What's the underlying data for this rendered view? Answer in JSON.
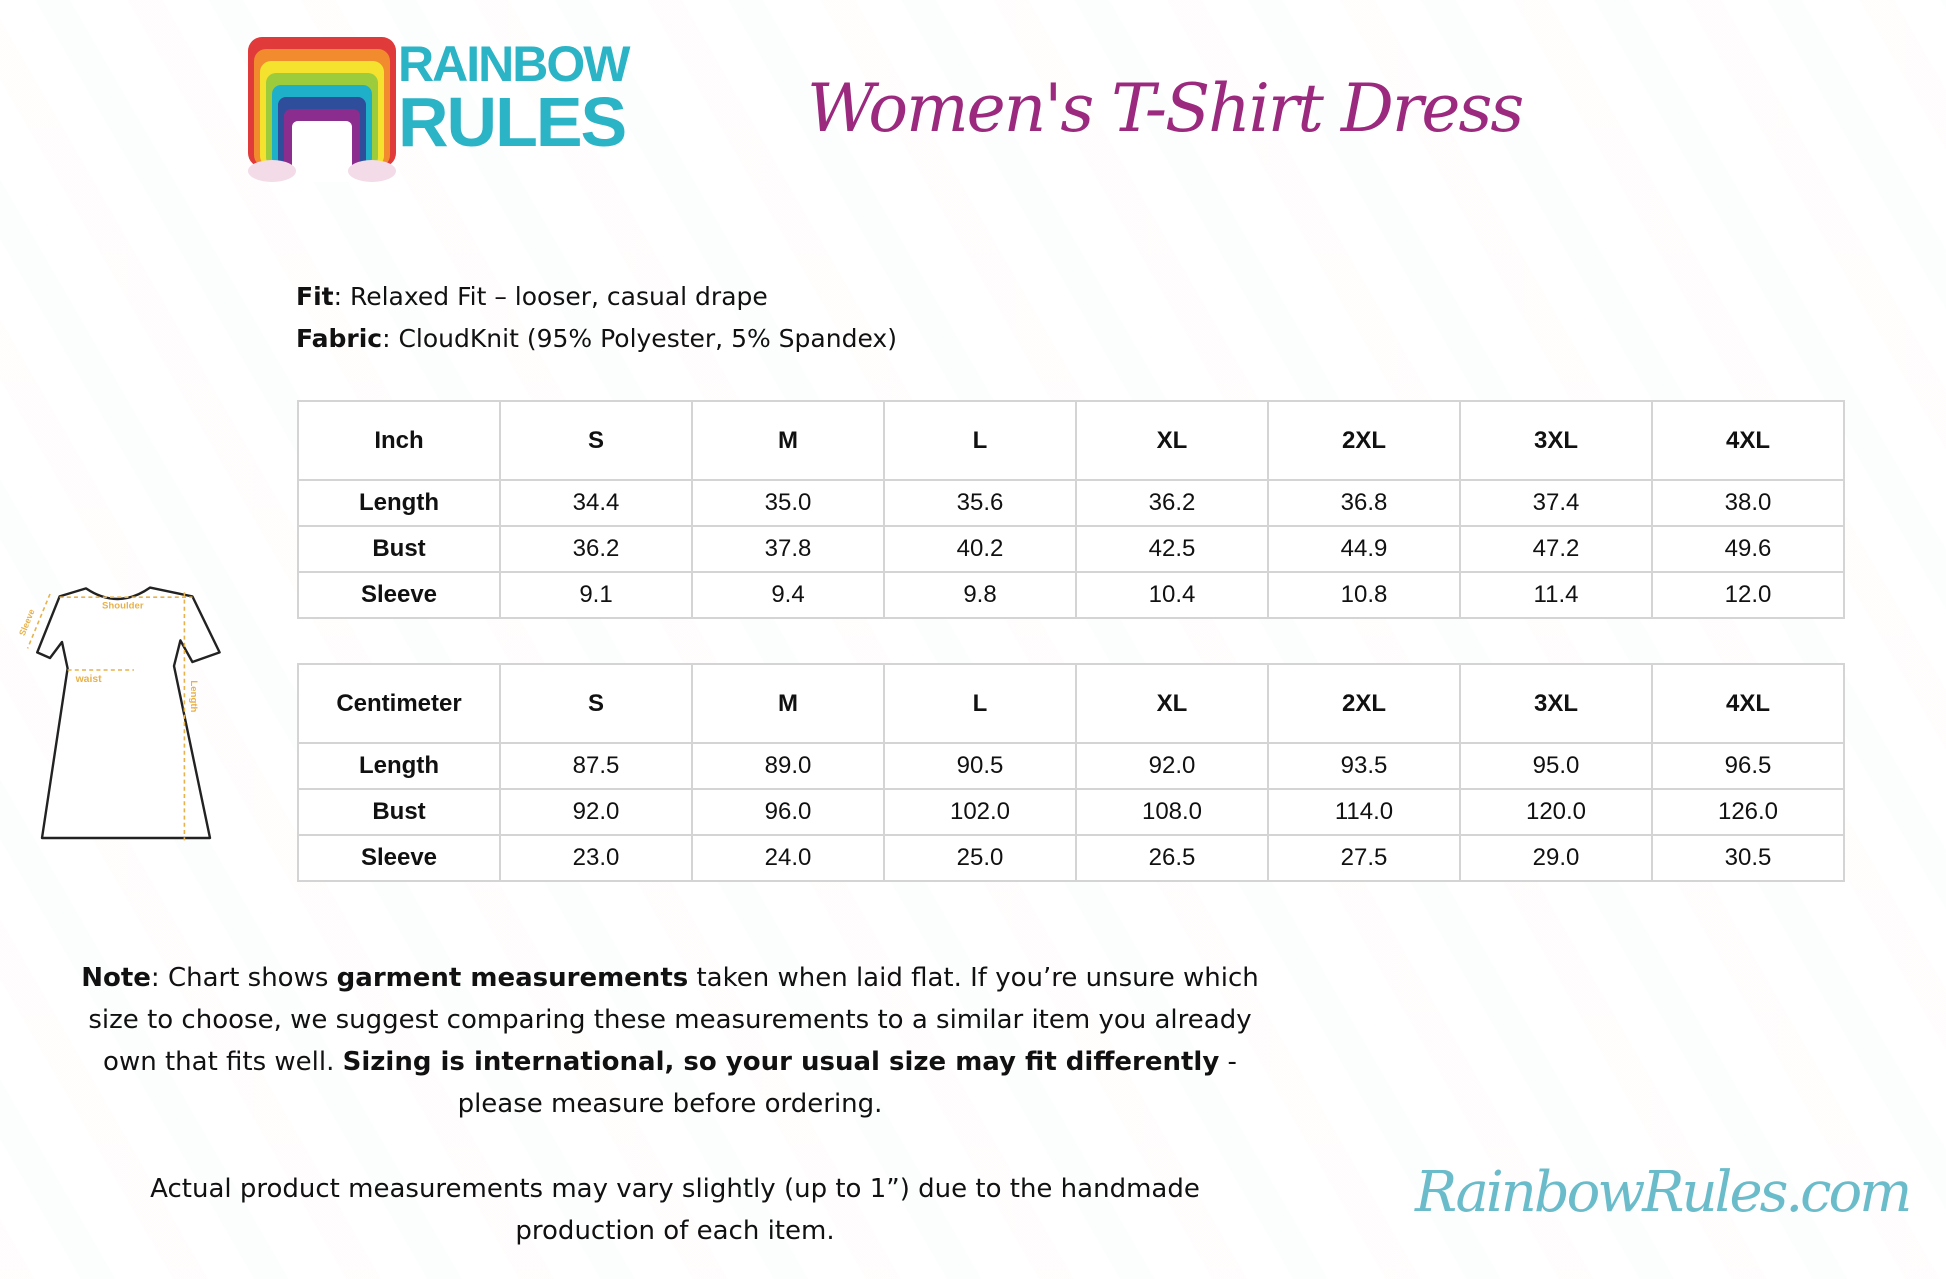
{
  "brand": {
    "logo_text_line1": "RAINBOW",
    "logo_text_line2": "RULES",
    "website": "RainbowRules.com",
    "teal": "#2bb3c6",
    "purple": "#9b2a7f"
  },
  "title": "Women's T-Shirt Dress",
  "specs": {
    "fit_label": "Fit",
    "fit_value": ": Relaxed Fit – looser, casual drape",
    "fabric_label": "Fabric",
    "fabric_value": ": CloudKnit (95% Polyester, 5% Spandex)"
  },
  "diagram": {
    "sleeve": "Sleeve",
    "shoulder": "Shoulder",
    "waist": "waist",
    "length": "Length"
  },
  "tables": [
    {
      "unit": "Inch",
      "sizes": [
        "S",
        "M",
        "L",
        "XL",
        "2XL",
        "3XL",
        "4XL"
      ],
      "rows": [
        {
          "label": "Length",
          "values": [
            "34.4",
            "35.0",
            "35.6",
            "36.2",
            "36.8",
            "37.4",
            "38.0"
          ]
        },
        {
          "label": "Bust",
          "values": [
            "36.2",
            "37.8",
            "40.2",
            "42.5",
            "44.9",
            "47.2",
            "49.6"
          ]
        },
        {
          "label": "Sleeve",
          "values": [
            "9.1",
            "9.4",
            "9.8",
            "10.4",
            "10.8",
            "11.4",
            "12.0"
          ]
        }
      ]
    },
    {
      "unit": "Centimeter",
      "sizes": [
        "S",
        "M",
        "L",
        "XL",
        "2XL",
        "3XL",
        "4XL"
      ],
      "rows": [
        {
          "label": "Length",
          "values": [
            "87.5",
            "89.0",
            "90.5",
            "92.0",
            "93.5",
            "95.0",
            "96.5"
          ]
        },
        {
          "label": "Bust",
          "values": [
            "92.0",
            "96.0",
            "102.0",
            "108.0",
            "114.0",
            "120.0",
            "126.0"
          ]
        },
        {
          "label": "Sleeve",
          "values": [
            "23.0",
            "24.0",
            "25.0",
            "26.5",
            "27.5",
            "29.0",
            "30.5"
          ]
        }
      ]
    }
  ],
  "note": {
    "p1_a": "Note",
    "p1_b": ": Chart shows ",
    "p1_c": "garment measurements",
    "p1_d": " taken when laid flat. If you’re unsure which size to choose, we suggest comparing these measurements to a similar item you already own that fits well. ",
    "p1_e": "Sizing is international, so your usual size may fit differently",
    "p1_f": " - please measure before ordering.",
    "p2": "Actual product measurements may vary slightly (up to 1”) due to the handmade production of each item."
  }
}
